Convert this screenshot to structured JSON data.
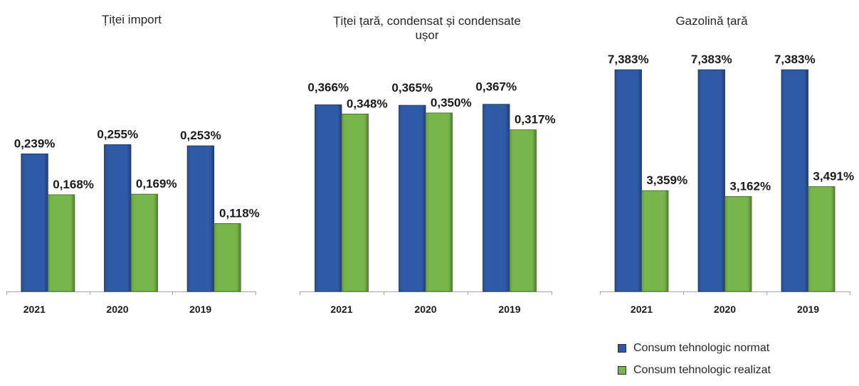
{
  "chart_data": [
    {
      "type": "bar",
      "title": "Țiței import",
      "categories": [
        "2021",
        "2020",
        "2019"
      ],
      "series": [
        {
          "color": "#2f5aa6",
          "values": [
            0.239,
            0.255,
            0.253
          ],
          "data_labels": [
            "0,239%",
            "0,255%",
            "0,253%"
          ]
        },
        {
          "color": "#78b64b",
          "values": [
            0.168,
            0.169,
            0.118
          ],
          "data_labels": [
            "0,168%",
            "0,169%",
            "0,118%"
          ]
        }
      ],
      "ylim": [
        0,
        0.3
      ],
      "grid": false
    },
    {
      "type": "bar",
      "title": "Țiței țară, condensat și condensate ușor",
      "categories": [
        "2021",
        "2020",
        "2019"
      ],
      "series": [
        {
          "color": "#2f5aa6",
          "values": [
            0.366,
            0.365,
            0.367
          ],
          "data_labels": [
            "0,366%",
            "0,365%",
            "0,367%"
          ]
        },
        {
          "color": "#78b64b",
          "values": [
            0.348,
            0.35,
            0.317
          ],
          "data_labels": [
            "0,348%",
            "0,350%",
            "0,317%"
          ]
        }
      ],
      "ylim": [
        0,
        0.4
      ],
      "grid": false
    },
    {
      "type": "bar",
      "title": "Gazolină țară",
      "categories": [
        "2021",
        "2020",
        "2019"
      ],
      "series": [
        {
          "name": "Consum tehnologic normat",
          "color": "#2f5aa6",
          "values": [
            7.383,
            7.383,
            7.383
          ],
          "data_labels": [
            "7,383%",
            "7,383%",
            "7,383%"
          ]
        },
        {
          "name": "Consum tehnologic realizat",
          "color": "#78b64b",
          "values": [
            3.359,
            3.162,
            3.491
          ],
          "data_labels": [
            "3,359%",
            "3,162%",
            "3,491%"
          ]
        }
      ],
      "ylim": [
        0,
        8
      ],
      "grid": false,
      "legend": "bottom"
    }
  ]
}
